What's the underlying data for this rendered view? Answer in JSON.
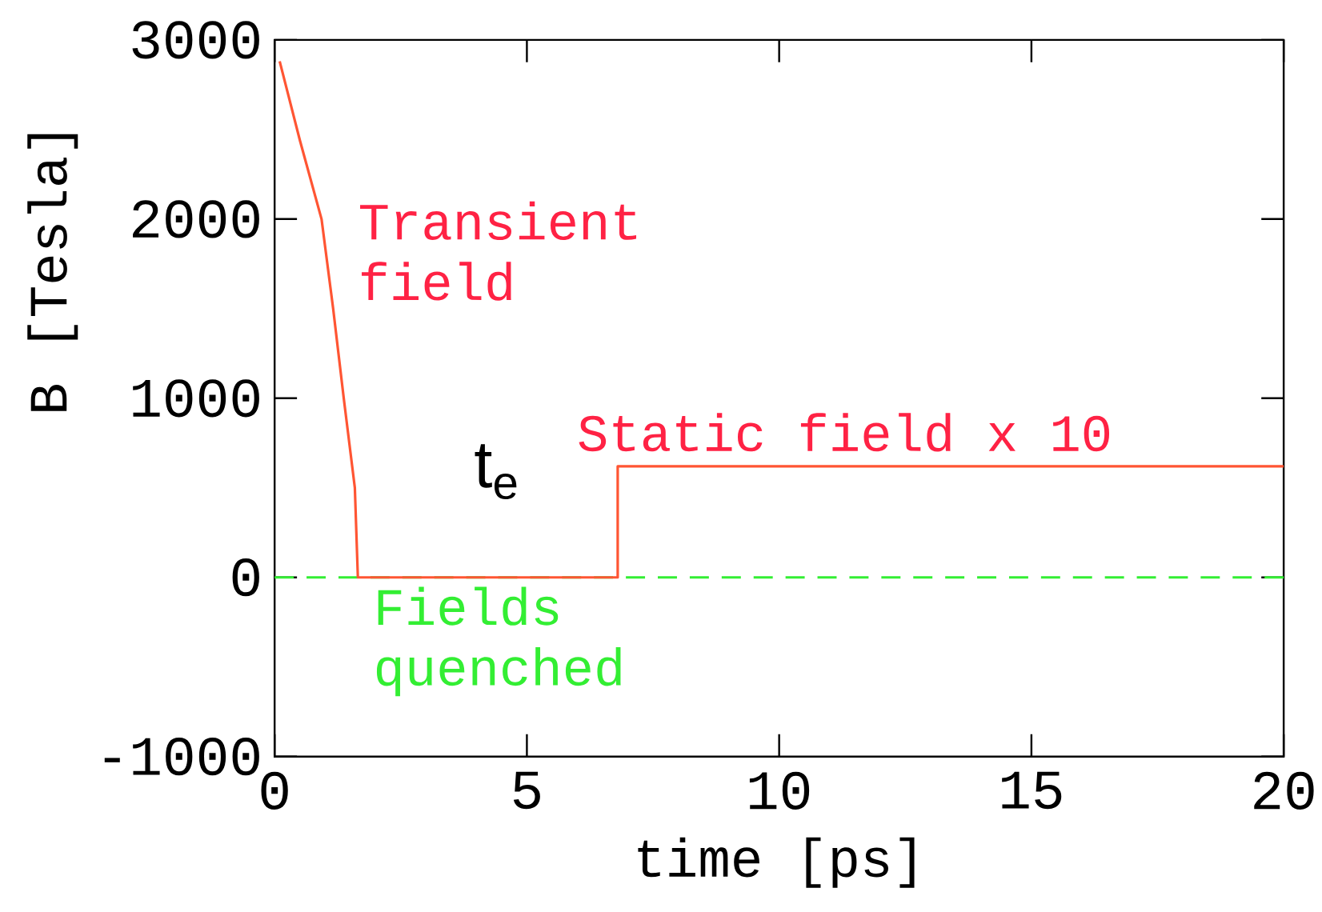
{
  "chart_data": {
    "type": "line",
    "xlabel": "time [ps]",
    "ylabel": "B [Tesla]",
    "xlim": [
      0,
      20
    ],
    "ylim": [
      -1000,
      3000
    ],
    "xticks": [
      0,
      5,
      10,
      15,
      20
    ],
    "yticks": [
      -1000,
      0,
      1000,
      2000,
      3000
    ],
    "grid": false,
    "marker": "none",
    "line_style": "solid",
    "series": [
      {
        "color": "#ff5533",
        "x": [
          0.1,
          0.5,
          0.93,
          1.16,
          1.37,
          1.59,
          1.65,
          6.8,
          6.8,
          20
        ],
        "values": [
          2880,
          2440,
          2000,
          1500,
          1000,
          500,
          0,
          0,
          620,
          620
        ]
      }
    ],
    "ref_lines": [
      {
        "axis": "y",
        "value": 0,
        "label": "Fields quenched",
        "color": "#33ee33",
        "line_style": "dashed"
      }
    ],
    "annotations": [
      "Transient field",
      "Static field x 10",
      "t$_{e}$"
    ]
  }
}
